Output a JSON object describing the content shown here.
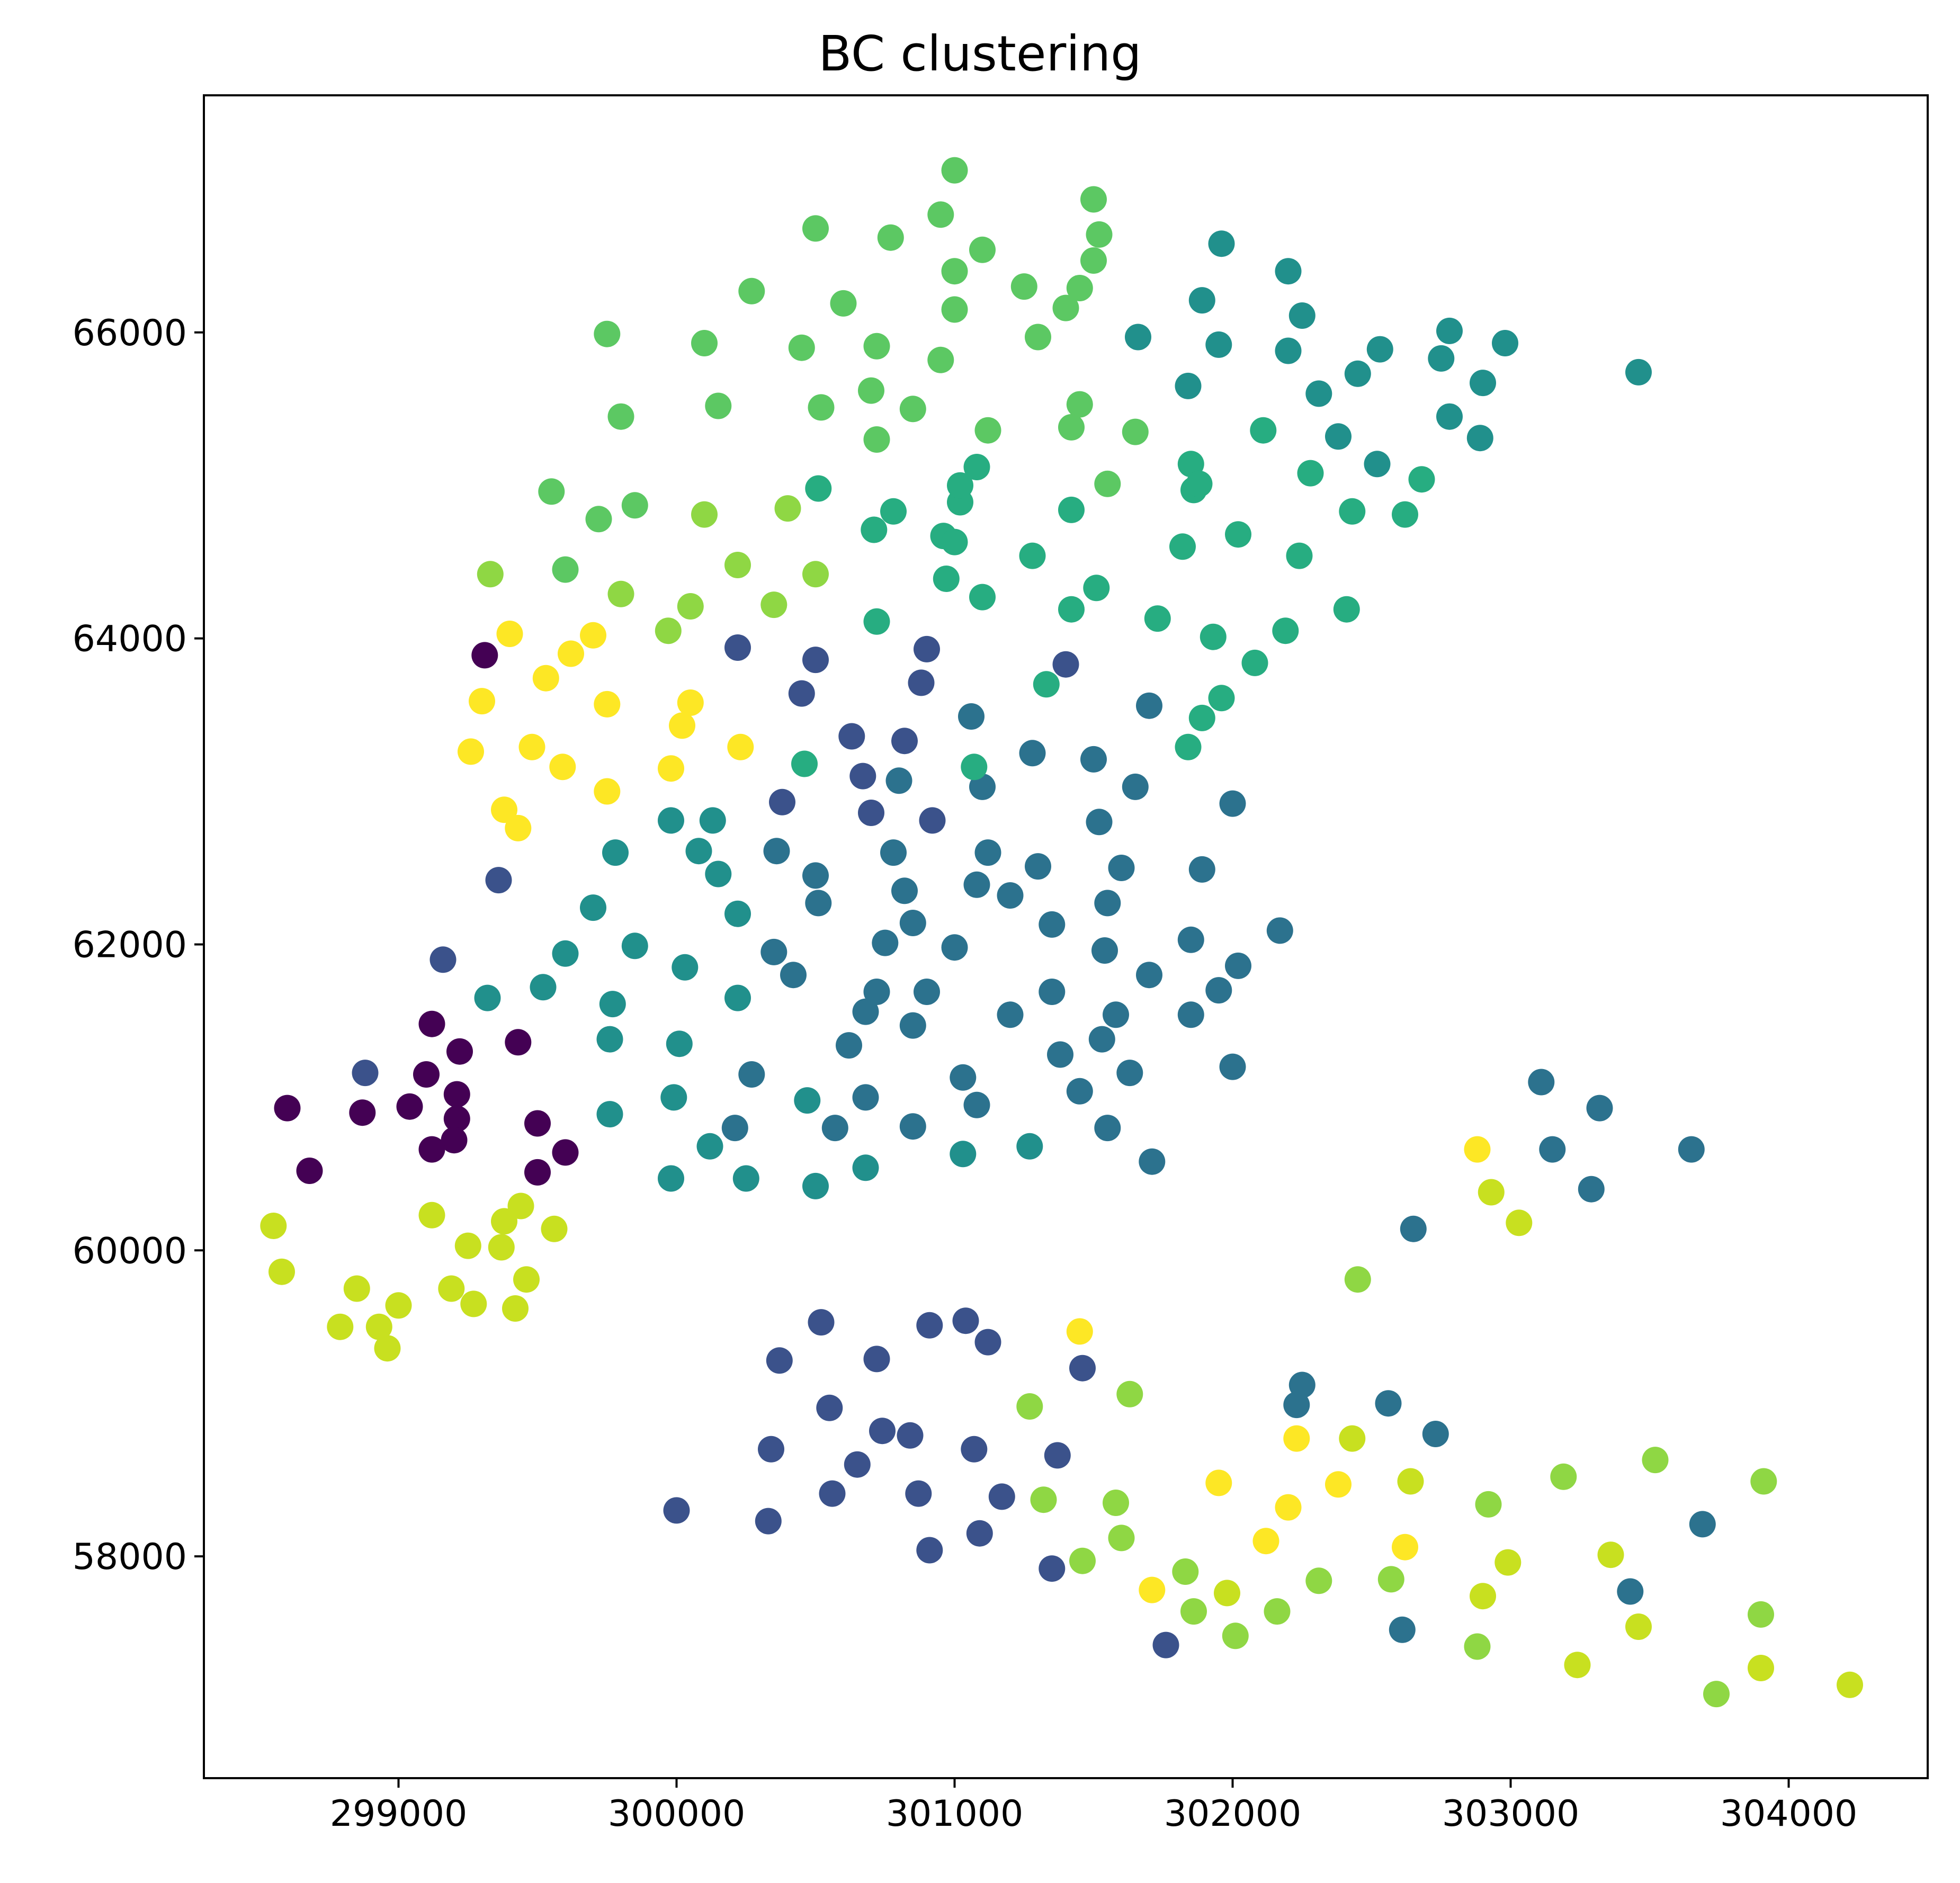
{
  "chart_data": {
    "type": "scatter",
    "title": "BC clustering",
    "xlabel": "",
    "ylabel": "",
    "xlim": [
      298300,
      304500
    ],
    "ylim": [
      56550,
      67550
    ],
    "xticks": [
      299000,
      300000,
      301000,
      302000,
      303000,
      304000
    ],
    "yticks": [
      58000,
      60000,
      62000,
      64000,
      66000
    ],
    "grid": false,
    "legend": "none",
    "colormap": "viridis",
    "palette": [
      "#440154",
      "#3b528b",
      "#2c728e",
      "#21908c",
      "#27ad81",
      "#5cc863",
      "#8fd744",
      "#c8e020",
      "#fde725"
    ],
    "points": [
      [
        301000,
        67060,
        5
      ],
      [
        301500,
        66870,
        5
      ],
      [
        300950,
        66770,
        5
      ],
      [
        300500,
        66680,
        5
      ],
      [
        300770,
        66620,
        5
      ],
      [
        301520,
        66640,
        5
      ],
      [
        301100,
        66540,
        5
      ],
      [
        301500,
        66470,
        5
      ],
      [
        301000,
        66400,
        5
      ],
      [
        301450,
        66290,
        5
      ],
      [
        301250,
        66300,
        5
      ],
      [
        301400,
        66160,
        5
      ],
      [
        301000,
        66150,
        5
      ],
      [
        300600,
        66190,
        5
      ],
      [
        300270,
        66270,
        5
      ],
      [
        301300,
        65970,
        5
      ],
      [
        299750,
        65990,
        5
      ],
      [
        300100,
        65930,
        5
      ],
      [
        300450,
        65900,
        5
      ],
      [
        300720,
        65910,
        5
      ],
      [
        300950,
        65820,
        5
      ],
      [
        300700,
        65620,
        5
      ],
      [
        300850,
        65500,
        5
      ],
      [
        300150,
        65520,
        5
      ],
      [
        300520,
        65510,
        5
      ],
      [
        299800,
        65450,
        5
      ],
      [
        300720,
        65300,
        5
      ],
      [
        301120,
        65360,
        5
      ],
      [
        301450,
        65530,
        5
      ],
      [
        301420,
        65380,
        5
      ],
      [
        301650,
        65350,
        5
      ],
      [
        301550,
        65010,
        5
      ],
      [
        299550,
        64960,
        5
      ],
      [
        299850,
        64870,
        5
      ],
      [
        299720,
        64780,
        5
      ],
      [
        300100,
        64810,
        6
      ],
      [
        300400,
        64850,
        6
      ],
      [
        299600,
        64450,
        5
      ],
      [
        299330,
        64420,
        6
      ],
      [
        300220,
        64480,
        6
      ],
      [
        300500,
        64420,
        6
      ],
      [
        299800,
        64290,
        6
      ],
      [
        300050,
        64210,
        6
      ],
      [
        300350,
        64220,
        6
      ],
      [
        299970,
        64050,
        6
      ],
      [
        299400,
        64030,
        8
      ],
      [
        299700,
        64020,
        8
      ],
      [
        299620,
        63900,
        8
      ],
      [
        299530,
        63740,
        8
      ],
      [
        300020,
        63430,
        8
      ],
      [
        300050,
        63580,
        8
      ],
      [
        299750,
        63570,
        8
      ],
      [
        299300,
        63590,
        8
      ],
      [
        299480,
        63290,
        8
      ],
      [
        299260,
        63260,
        8
      ],
      [
        300230,
        63290,
        8
      ],
      [
        299980,
        63150,
        8
      ],
      [
        299590,
        63160,
        8
      ],
      [
        299750,
        63000,
        8
      ],
      [
        299380,
        62880,
        8
      ],
      [
        299430,
        62760,
        8
      ],
      [
        299310,
        63890,
        0
      ],
      [
        299360,
        62420,
        1
      ],
      [
        300220,
        63940,
        1
      ],
      [
        300500,
        63860,
        1
      ],
      [
        300450,
        63640,
        1
      ],
      [
        300880,
        63710,
        1
      ],
      [
        300900,
        63930,
        1
      ],
      [
        300630,
        63360,
        1
      ],
      [
        300820,
        63330,
        1
      ],
      [
        300670,
        63100,
        1
      ],
      [
        300380,
        62930,
        1
      ],
      [
        300700,
        62860,
        1
      ],
      [
        300800,
        63070,
        2
      ],
      [
        300920,
        62810,
        1
      ],
      [
        301060,
        63490,
        2
      ],
      [
        301400,
        63830,
        1
      ],
      [
        300360,
        62610,
        2
      ],
      [
        300780,
        62600,
        2
      ],
      [
        300500,
        62450,
        2
      ],
      [
        300510,
        62270,
        2
      ],
      [
        300820,
        62350,
        2
      ],
      [
        300850,
        62140,
        2
      ],
      [
        300750,
        62010,
        2
      ],
      [
        301000,
        61980,
        2
      ],
      [
        301080,
        62390,
        2
      ],
      [
        301120,
        62600,
        2
      ],
      [
        301100,
        63030,
        2
      ],
      [
        301200,
        62320,
        2
      ],
      [
        301300,
        62510,
        2
      ],
      [
        301280,
        63250,
        2
      ],
      [
        301500,
        63210,
        2
      ],
      [
        301520,
        62800,
        2
      ],
      [
        301600,
        62500,
        2
      ],
      [
        301550,
        62270,
        2
      ],
      [
        301350,
        62130,
        2
      ],
      [
        301540,
        61960,
        2
      ],
      [
        301700,
        61800,
        2
      ],
      [
        301650,
        63030,
        2
      ],
      [
        301700,
        63560,
        2
      ],
      [
        301890,
        62490,
        2
      ],
      [
        301850,
        62030,
        2
      ],
      [
        302000,
        62920,
        2
      ],
      [
        302170,
        62090,
        2
      ],
      [
        302020,
        61860,
        2
      ],
      [
        301950,
        61700,
        2
      ],
      [
        301850,
        61540,
        2
      ],
      [
        302000,
        61200,
        2
      ],
      [
        301630,
        61160,
        2
      ],
      [
        301580,
        61540,
        2
      ],
      [
        301530,
        61380,
        2
      ],
      [
        301350,
        61690,
        2
      ],
      [
        301200,
        61540,
        2
      ],
      [
        301380,
        61280,
        2
      ],
      [
        301450,
        61040,
        2
      ],
      [
        301550,
        60800,
        2
      ],
      [
        301710,
        60580,
        2
      ],
      [
        300900,
        61690,
        2
      ],
      [
        300850,
        61470,
        2
      ],
      [
        300720,
        61690,
        2
      ],
      [
        300680,
        61560,
        2
      ],
      [
        300620,
        61340,
        2
      ],
      [
        301030,
        61130,
        2
      ],
      [
        301080,
        60950,
        2
      ],
      [
        300680,
        61000,
        2
      ],
      [
        300570,
        60800,
        2
      ],
      [
        300850,
        60810,
        2
      ],
      [
        300420,
        61800,
        2
      ],
      [
        300350,
        61950,
        2
      ],
      [
        300220,
        62200,
        3
      ],
      [
        300150,
        62460,
        3
      ],
      [
        300080,
        62610,
        3
      ],
      [
        299980,
        62810,
        3
      ],
      [
        300130,
        62810,
        3
      ],
      [
        299780,
        62600,
        3
      ],
      [
        299700,
        62240,
        3
      ],
      [
        299850,
        61990,
        3
      ],
      [
        299600,
        61940,
        3
      ],
      [
        299520,
        61720,
        3
      ],
      [
        299320,
        61650,
        3
      ],
      [
        299770,
        61610,
        3
      ],
      [
        299760,
        61380,
        3
      ],
      [
        300030,
        61850,
        3
      ],
      [
        300220,
        61650,
        3
      ],
      [
        300270,
        61150,
        2
      ],
      [
        300210,
        60800,
        2
      ],
      [
        299760,
        60890,
        3
      ],
      [
        300010,
        61350,
        3
      ],
      [
        299990,
        61000,
        3
      ],
      [
        300470,
        60980,
        3
      ],
      [
        300120,
        60680,
        3
      ],
      [
        300250,
        60470,
        3
      ],
      [
        299980,
        60470,
        3
      ],
      [
        300500,
        60420,
        3
      ],
      [
        300680,
        60540,
        3
      ],
      [
        301030,
        60630,
        3
      ],
      [
        301270,
        60680,
        3
      ],
      [
        299100,
        61150,
        0
      ],
      [
        299120,
        61480,
        0
      ],
      [
        299220,
        61300,
        0
      ],
      [
        299430,
        61360,
        0
      ],
      [
        299040,
        60940,
        0
      ],
      [
        299210,
        61020,
        0
      ],
      [
        299210,
        60860,
        0
      ],
      [
        299200,
        60720,
        0
      ],
      [
        299120,
        60660,
        0
      ],
      [
        298870,
        60900,
        0
      ],
      [
        298600,
        60930,
        0
      ],
      [
        298680,
        60520,
        0
      ],
      [
        299500,
        60830,
        0
      ],
      [
        299500,
        60510,
        0
      ],
      [
        299600,
        60640,
        0
      ],
      [
        298880,
        61160,
        1
      ],
      [
        299160,
        61900,
        1
      ],
      [
        298550,
        60160,
        7
      ],
      [
        298580,
        59860,
        7
      ],
      [
        299120,
        60230,
        7
      ],
      [
        299380,
        60190,
        7
      ],
      [
        299440,
        60290,
        7
      ],
      [
        299560,
        60140,
        7
      ],
      [
        299250,
        60030,
        7
      ],
      [
        299370,
        60020,
        7
      ],
      [
        299460,
        59810,
        7
      ],
      [
        298850,
        59750,
        7
      ],
      [
        299190,
        59750,
        7
      ],
      [
        299000,
        59640,
        7
      ],
      [
        299270,
        59650,
        7
      ],
      [
        299420,
        59620,
        7
      ],
      [
        298790,
        59500,
        7
      ],
      [
        298930,
        59500,
        7
      ],
      [
        298960,
        59360,
        7
      ],
      [
        300520,
        59530,
        1
      ],
      [
        300370,
        59280,
        1
      ],
      [
        300720,
        59290,
        1
      ],
      [
        300910,
        59510,
        1
      ],
      [
        301040,
        59540,
        1
      ],
      [
        301120,
        59400,
        1
      ],
      [
        301460,
        59230,
        1
      ],
      [
        300550,
        58970,
        1
      ],
      [
        300740,
        58820,
        1
      ],
      [
        300840,
        58790,
        1
      ],
      [
        301070,
        58700,
        1
      ],
      [
        300340,
        58700,
        1
      ],
      [
        300650,
        58600,
        1
      ],
      [
        301370,
        58660,
        1
      ],
      [
        300560,
        58410,
        1
      ],
      [
        300870,
        58410,
        1
      ],
      [
        301170,
        58390,
        1
      ],
      [
        300000,
        58300,
        1
      ],
      [
        300330,
        58230,
        1
      ],
      [
        301090,
        58150,
        1
      ],
      [
        300910,
        58040,
        1
      ],
      [
        301350,
        57920,
        1
      ],
      [
        301760,
        57420,
        1
      ],
      [
        302250,
        59120,
        2
      ],
      [
        302230,
        58990,
        2
      ],
      [
        302560,
        59000,
        2
      ],
      [
        302730,
        58800,
        2
      ],
      [
        302650,
        60140,
        2
      ],
      [
        303110,
        61100,
        2
      ],
      [
        303150,
        60660,
        2
      ],
      [
        303320,
        60930,
        2
      ],
      [
        303290,
        60400,
        2
      ],
      [
        303650,
        60660,
        2
      ],
      [
        303690,
        58210,
        2
      ],
      [
        303430,
        57770,
        2
      ],
      [
        302610,
        57520,
        2
      ],
      [
        302450,
        59810,
        6
      ],
      [
        301270,
        58980,
        6
      ],
      [
        301630,
        59060,
        6
      ],
      [
        301320,
        58370,
        6
      ],
      [
        301580,
        58350,
        6
      ],
      [
        301600,
        58120,
        6
      ],
      [
        301460,
        57970,
        6
      ],
      [
        301830,
        57900,
        6
      ],
      [
        301860,
        57640,
        6
      ],
      [
        301980,
        57760,
        7
      ],
      [
        302010,
        57480,
        6
      ],
      [
        302160,
        57640,
        6
      ],
      [
        302310,
        57840,
        6
      ],
      [
        302570,
        57850,
        6
      ],
      [
        302880,
        57410,
        6
      ],
      [
        302900,
        57740,
        7
      ],
      [
        302920,
        58340,
        6
      ],
      [
        302930,
        60380,
        7
      ],
      [
        303030,
        60180,
        7
      ],
      [
        303190,
        58520,
        6
      ],
      [
        303520,
        58630,
        6
      ],
      [
        303360,
        58010,
        7
      ],
      [
        303460,
        57540,
        7
      ],
      [
        303910,
        58490,
        6
      ],
      [
        303900,
        57620,
        6
      ],
      [
        303740,
        57100,
        6
      ],
      [
        303900,
        57270,
        7
      ],
      [
        304220,
        57160,
        7
      ],
      [
        303240,
        57290,
        7
      ],
      [
        302990,
        57960,
        7
      ],
      [
        302640,
        58490,
        7
      ],
      [
        302880,
        60660,
        8
      ],
      [
        301450,
        59470,
        8
      ],
      [
        302230,
        58770,
        8
      ],
      [
        302430,
        58770,
        7
      ],
      [
        302200,
        58320,
        8
      ],
      [
        302380,
        58470,
        8
      ],
      [
        301950,
        58480,
        8
      ],
      [
        302120,
        58100,
        8
      ],
      [
        302620,
        58060,
        8
      ],
      [
        301710,
        57780,
        8
      ],
      [
        302250,
        66110,
        3
      ],
      [
        301960,
        66580,
        3
      ],
      [
        302200,
        66400,
        3
      ],
      [
        301950,
        65920,
        3
      ],
      [
        302200,
        65880,
        3
      ],
      [
        302310,
        65600,
        3
      ],
      [
        302450,
        65730,
        3
      ],
      [
        302530,
        65890,
        3
      ],
      [
        302750,
        65830,
        3
      ],
      [
        302780,
        66010,
        3
      ],
      [
        302900,
        65670,
        3
      ],
      [
        302980,
        65930,
        3
      ],
      [
        303460,
        65740,
        3
      ],
      [
        302780,
        65450,
        3
      ],
      [
        302890,
        65310,
        3
      ],
      [
        302380,
        65320,
        3
      ],
      [
        302520,
        65140,
        3
      ],
      [
        302280,
        65080,
        4
      ],
      [
        302680,
        65040,
        4
      ],
      [
        302430,
        64830,
        4
      ],
      [
        302620,
        64810,
        4
      ],
      [
        302410,
        64190,
        4
      ],
      [
        301660,
        65970,
        3
      ],
      [
        301840,
        65650,
        3
      ],
      [
        301890,
        66210,
        3
      ],
      [
        302110,
        65360,
        4
      ],
      [
        301850,
        65140,
        4
      ],
      [
        301860,
        64970,
        4
      ],
      [
        301880,
        65010,
        4
      ],
      [
        302020,
        64680,
        4
      ],
      [
        302240,
        64540,
        4
      ],
      [
        301820,
        64600,
        4
      ],
      [
        302190,
        64050,
        4
      ],
      [
        302080,
        63840,
        4
      ],
      [
        301730,
        64130,
        4
      ],
      [
        301930,
        64010,
        4
      ],
      [
        301960,
        63610,
        4
      ],
      [
        301890,
        63480,
        4
      ],
      [
        301840,
        63290,
        4
      ],
      [
        301510,
        64330,
        4
      ],
      [
        301420,
        64840,
        4
      ],
      [
        301420,
        64190,
        4
      ],
      [
        301280,
        64540,
        4
      ],
      [
        301100,
        64270,
        4
      ],
      [
        301330,
        63700,
        4
      ],
      [
        301070,
        63160,
        4
      ],
      [
        300960,
        64670,
        4
      ],
      [
        301000,
        64630,
        4
      ],
      [
        300970,
        64390,
        4
      ],
      [
        301020,
        64890,
        4
      ],
      [
        301020,
        65000,
        4
      ],
      [
        301080,
        65120,
        4
      ],
      [
        300780,
        64830,
        4
      ],
      [
        300710,
        64710,
        4
      ],
      [
        300720,
        64110,
        4
      ],
      [
        300510,
        64980,
        4
      ],
      [
        300460,
        63180,
        4
      ]
    ]
  }
}
